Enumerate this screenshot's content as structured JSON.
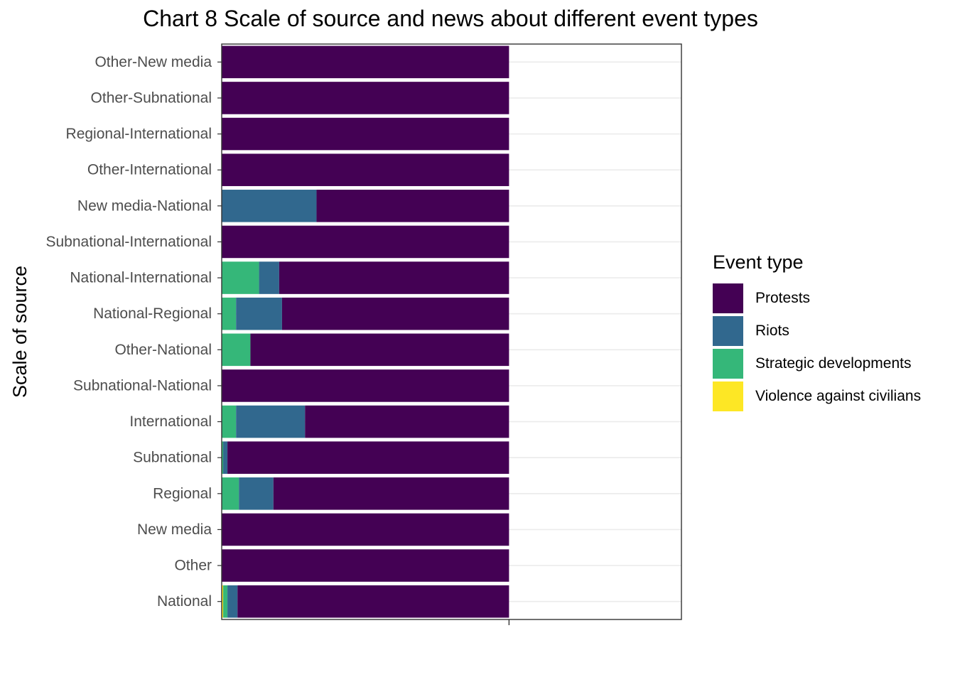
{
  "chart_data": {
    "type": "bar",
    "orientation": "horizontal",
    "stacked": true,
    "title": "Chart 8 Scale of source and news about different event types",
    "ylabel": "Scale of source",
    "xlim": [
      0,
      1.6
    ],
    "categories": [
      "Other-New media",
      "Other-Subnational",
      "Regional-International",
      "Other-International",
      "New media-National",
      "Subnational-International",
      "National-International",
      "National-Regional",
      "Other-National",
      "Subnational-National",
      "International",
      "Subnational",
      "Regional",
      "New media",
      "Other",
      "National"
    ],
    "series": [
      {
        "name": "Violence against civilians",
        "color": "#FDE725",
        "values": [
          0,
          0,
          0,
          0,
          0,
          0,
          0,
          0,
          0,
          0,
          0,
          0,
          0,
          0,
          0,
          0.005
        ]
      },
      {
        "name": "Strategic developments",
        "color": "#35B779",
        "values": [
          0,
          0,
          0,
          0,
          0,
          0,
          0.13,
          0.05,
          0.1,
          0,
          0.05,
          0.005,
          0.06,
          0,
          0,
          0.015
        ]
      },
      {
        "name": "Riots",
        "color": "#31688E",
        "values": [
          0,
          0,
          0,
          0,
          0.33,
          0,
          0.07,
          0.16,
          0,
          0,
          0.24,
          0.015,
          0.12,
          0,
          0,
          0.035
        ]
      },
      {
        "name": "Protests",
        "color": "#440154",
        "values": [
          1,
          1,
          1,
          1,
          0.67,
          1,
          0.8,
          0.79,
          0.9,
          1,
          0.71,
          0.98,
          0.82,
          1,
          1,
          0.945
        ]
      }
    ],
    "legend": {
      "title": "Event type",
      "placement": "right",
      "entries": [
        "Protests",
        "Riots",
        "Strategic developments",
        "Violence against civilians"
      ]
    },
    "grid": true
  }
}
